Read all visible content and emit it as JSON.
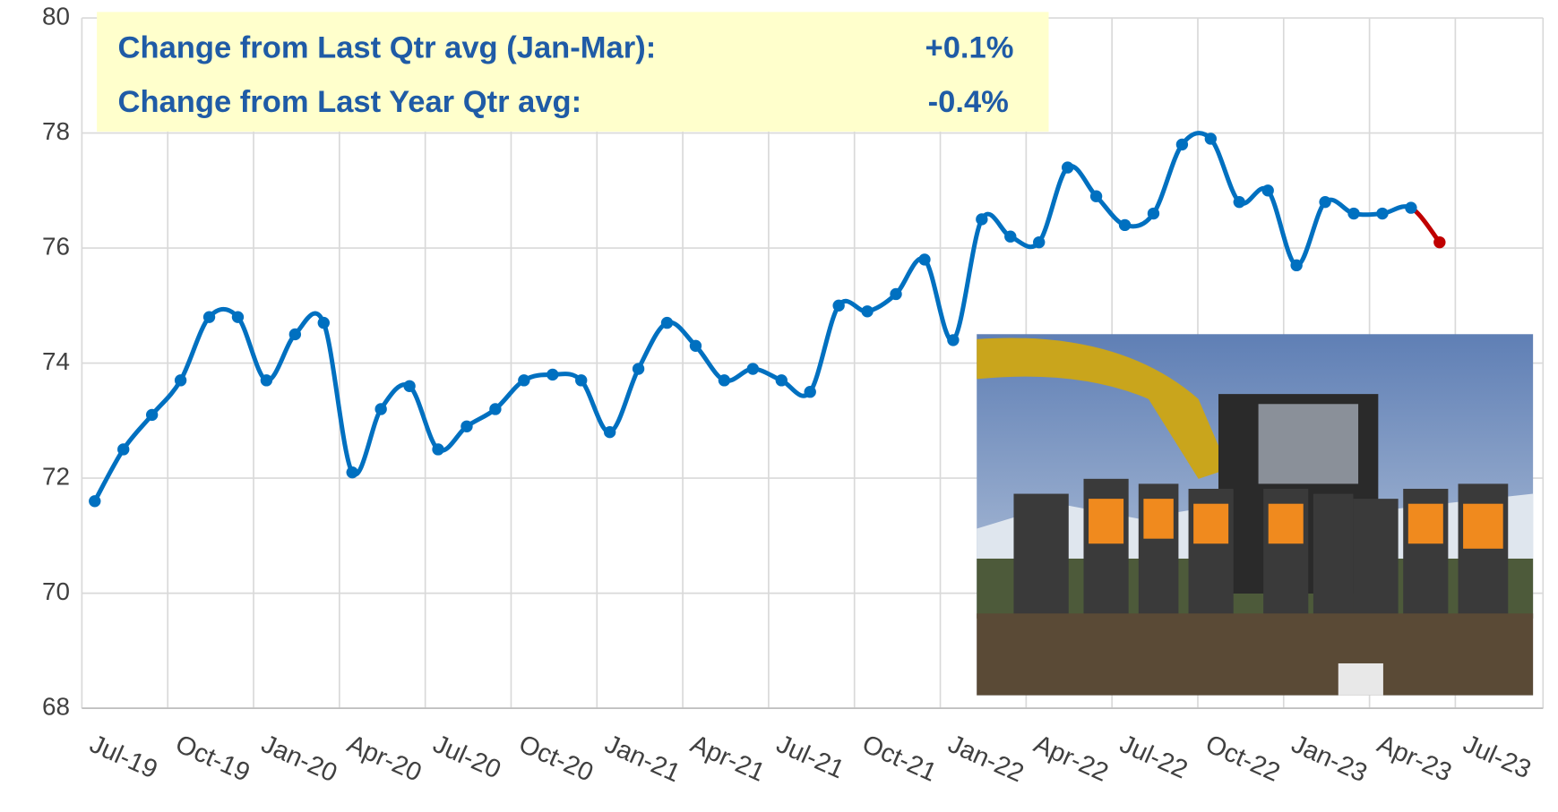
{
  "chart_data": {
    "type": "line",
    "annotations": [
      {
        "label": "Change from Last Qtr avg (Jan-Mar):",
        "value": "+0.1%"
      },
      {
        "label": "Change from Last Year Qtr avg:",
        "value": "-0.4%"
      }
    ],
    "categories": [
      "Jul-19",
      null,
      null,
      "Oct-19",
      null,
      null,
      "Jan-20",
      null,
      null,
      "Apr-20",
      null,
      null,
      "Jul-20",
      null,
      null,
      "Oct-20",
      null,
      null,
      "Jan-21",
      null,
      null,
      "Apr-21",
      null,
      null,
      "Jul-21",
      null,
      null,
      "Oct-21",
      null,
      null,
      "Jan-22",
      null,
      null,
      "Apr-22",
      null,
      null,
      "Jul-22",
      null,
      null,
      "Oct-22",
      null,
      null,
      "Jan-23",
      null,
      null,
      "Apr-23",
      null,
      null,
      "Jul-23"
    ],
    "series": [
      {
        "color": "#0070c0",
        "highlight_last_color": "#c00000",
        "values": [
          71.6,
          72.5,
          73.1,
          73.7,
          74.8,
          74.8,
          73.7,
          74.5,
          74.7,
          72.1,
          73.2,
          73.6,
          72.5,
          72.9,
          73.2,
          73.7,
          73.8,
          73.7,
          72.8,
          73.9,
          74.7,
          74.3,
          73.7,
          73.9,
          73.7,
          73.5,
          75.0,
          74.9,
          75.2,
          75.8,
          74.4,
          76.5,
          76.2,
          76.1,
          77.4,
          76.9,
          76.4,
          76.6,
          77.8,
          77.9,
          76.8,
          77.0,
          75.7,
          76.8,
          76.6,
          76.6,
          76.7,
          76.1,
          null
        ]
      }
    ],
    "ylim": [
      68,
      80
    ],
    "yticks": [
      68,
      70,
      72,
      74,
      76,
      78,
      80
    ],
    "grid": true
  }
}
